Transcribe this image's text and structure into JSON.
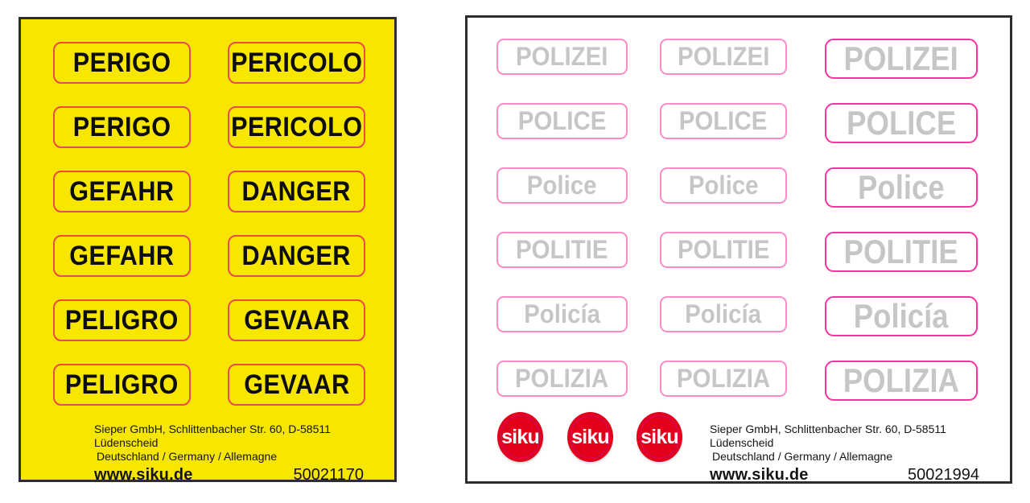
{
  "colors": {
    "warning_sheet_yellow": "#f7e600",
    "warning_sticker_border_red": "#f0484a",
    "warning_text_black": "#0d0d0d",
    "police_sticker_border_pink": "#fb8cc7",
    "police_sticker_border_magenta": "#fb30a2",
    "police_text_gray": "#c6c6c6",
    "siku_logo_red": "#e2001a",
    "siku_logo_ring_magenta": "#cf0a6e",
    "sheet_border_dark": "#2e2e2e"
  },
  "left_sheet": {
    "labels": [
      [
        "PERIGO",
        "PERICOLO"
      ],
      [
        "PERIGO",
        "PERICOLO"
      ],
      [
        "GEFAHR",
        "DANGER"
      ],
      [
        "GEFAHR",
        "DANGER"
      ],
      [
        "PELIGRO",
        "GEVAAR"
      ],
      [
        "PELIGRO",
        "GEVAAR"
      ]
    ],
    "footer": {
      "address_line1": "Sieper GmbH, Schlittenbacher Str. 60, D-58511 Lüdenscheid",
      "address_line2": "Deutschland / Germany / Allemagne",
      "website": "www.siku.de",
      "product_number": "50021170"
    }
  },
  "right_sheet": {
    "labels": [
      [
        "POLIZEI",
        "POLIZEI",
        "POLIZEI"
      ],
      [
        "POLICE",
        "POLICE",
        "POLICE"
      ],
      [
        "Police",
        "Police",
        "Police"
      ],
      [
        "POLITIE",
        "POLITIE",
        "POLITIE"
      ],
      [
        "Policía",
        "Policía",
        "Policía"
      ],
      [
        "POLIZIA",
        "POLIZIA",
        "POLIZIA"
      ]
    ],
    "logo_text": "siku",
    "footer": {
      "address_line1": "Sieper GmbH, Schlittenbacher Str. 60, D-58511 Lüdenscheid",
      "address_line2": "Deutschland / Germany / Allemagne",
      "website": "www.siku.de",
      "product_number": "50021994"
    }
  }
}
